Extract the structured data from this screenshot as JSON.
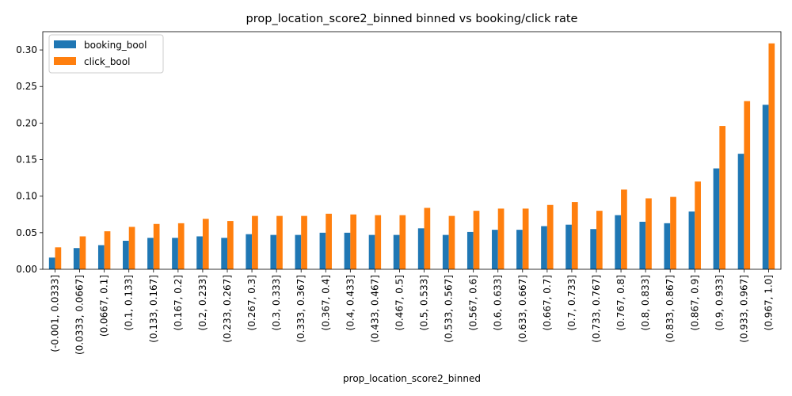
{
  "chart_data": {
    "type": "bar",
    "title": "prop_location_score2_binned binned vs booking/click rate",
    "xlabel": "prop_location_score2_binned",
    "ylabel": "",
    "ylim": [
      0,
      0.325
    ],
    "yticks": [
      "0.00",
      "0.05",
      "0.10",
      "0.15",
      "0.20",
      "0.25",
      "0.30"
    ],
    "grid": false,
    "legend_position": "top-left",
    "categories": [
      "(-0.001, 0.0333]",
      "(0.0333, 0.0667]",
      "(0.0667, 0.1]",
      "(0.1, 0.133]",
      "(0.133, 0.167]",
      "(0.167, 0.2]",
      "(0.2, 0.233]",
      "(0.233, 0.267]",
      "(0.267, 0.3]",
      "(0.3, 0.333]",
      "(0.333, 0.367]",
      "(0.367, 0.4]",
      "(0.4, 0.433]",
      "(0.433, 0.467]",
      "(0.467, 0.5]",
      "(0.5, 0.533]",
      "(0.533, 0.567]",
      "(0.567, 0.6]",
      "(0.6, 0.633]",
      "(0.633, 0.667]",
      "(0.667, 0.7]",
      "(0.7, 0.733]",
      "(0.733, 0.767]",
      "(0.767, 0.8]",
      "(0.8, 0.833]",
      "(0.833, 0.867]",
      "(0.867, 0.9]",
      "(0.9, 0.933]",
      "(0.933, 0.967]",
      "(0.967, 1.0]"
    ],
    "series": [
      {
        "name": "booking_bool",
        "color": "#1f77b4",
        "values": [
          0.016,
          0.029,
          0.033,
          0.039,
          0.043,
          0.043,
          0.045,
          0.043,
          0.048,
          0.047,
          0.047,
          0.05,
          0.05,
          0.047,
          0.047,
          0.056,
          0.047,
          0.051,
          0.054,
          0.054,
          0.059,
          0.061,
          0.055,
          0.074,
          0.065,
          0.063,
          0.079,
          0.138,
          0.158,
          0.225
        ]
      },
      {
        "name": "click_bool",
        "color": "#ff7f0e",
        "values": [
          0.03,
          0.045,
          0.052,
          0.058,
          0.062,
          0.063,
          0.069,
          0.066,
          0.073,
          0.073,
          0.073,
          0.076,
          0.075,
          0.074,
          0.074,
          0.084,
          0.073,
          0.08,
          0.083,
          0.083,
          0.088,
          0.092,
          0.08,
          0.109,
          0.097,
          0.099,
          0.12,
          0.196,
          0.23,
          0.309
        ]
      }
    ]
  }
}
